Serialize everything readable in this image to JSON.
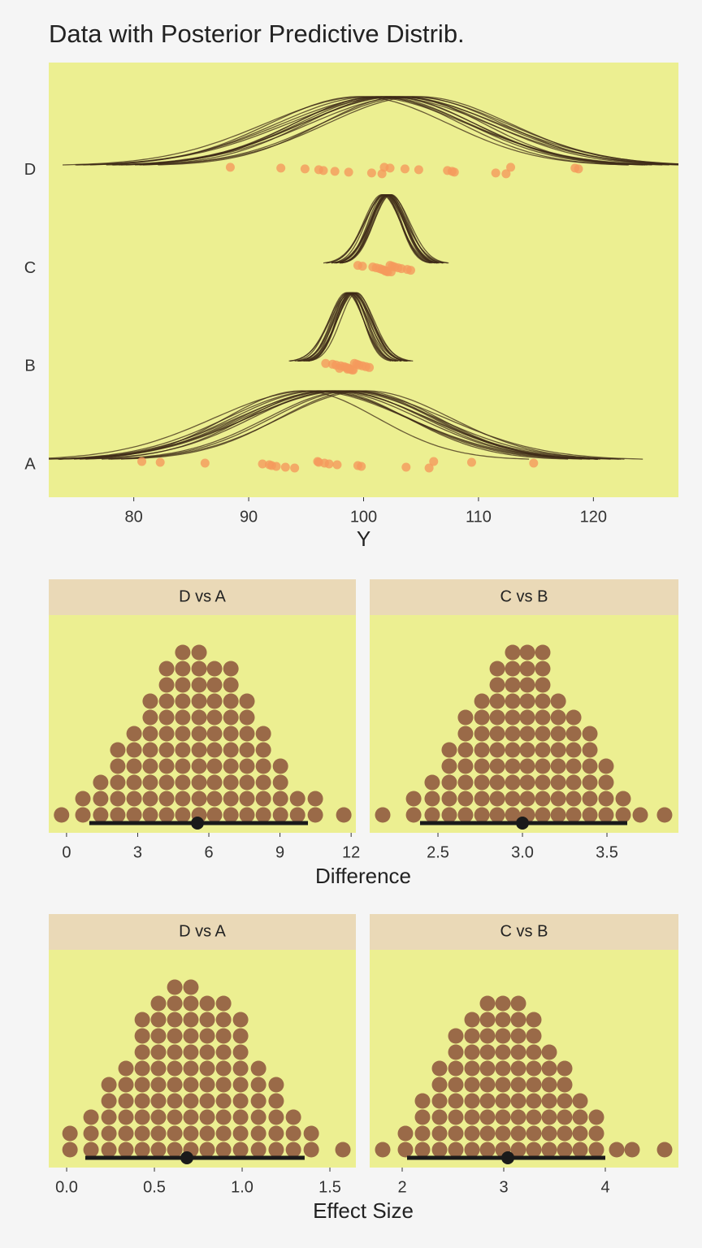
{
  "chart_data": [
    {
      "type": "ppd",
      "title": "Data with Posterior Predictive Distrib.",
      "xlabel": "Y",
      "categories": [
        "A",
        "B",
        "C",
        "D"
      ],
      "xlim": [
        72.6,
        127.4
      ],
      "xticks": [
        80,
        90,
        100,
        110,
        120
      ],
      "point_color": "#f59a5c",
      "curve_color": "#3d2a17",
      "background": "#ecef91",
      "groups": [
        {
          "points": [
            80.7,
            82.3,
            86.2,
            91.2,
            91.8,
            92.0,
            92.4,
            93.2,
            94.0,
            96.0,
            96.1,
            96.6,
            97.0,
            97.7,
            99.5,
            99.8,
            103.7,
            105.7,
            106.1,
            109.4,
            114.8
          ],
          "mu": [
            96.2,
            97.5,
            98.8,
            95.4,
            99.6,
            97.0,
            98.1,
            96.8,
            100.2,
            94.6,
            98.5,
            97.8,
            99.1,
            96.0,
            97.3
          ],
          "sigma": [
            7.6,
            8.0,
            7.2,
            8.4,
            6.9,
            7.8,
            8.2,
            7.0,
            7.4,
            6.6,
            8.6,
            7.5,
            7.1,
            7.9,
            8.3
          ]
        },
        {
          "points": [
            96.7,
            97.3,
            97.6,
            98.0,
            98.3,
            98.5,
            98.7,
            98.8,
            99.0,
            99.2,
            99.4,
            99.6,
            99.9,
            100.2,
            100.5,
            97.9,
            98.6,
            99.1
          ],
          "mu": [
            98.6,
            99.0,
            98.9,
            99.2,
            98.7,
            99.1,
            98.8,
            99.3,
            98.5,
            99.0,
            98.9,
            99.4,
            98.8,
            99.1,
            98.7
          ],
          "sigma": [
            1.4,
            1.6,
            1.3,
            1.5,
            1.7,
            1.4,
            1.2,
            1.6,
            1.5,
            1.3,
            1.8,
            1.4,
            1.5,
            1.6,
            1.3
          ]
        },
        {
          "points": [
            99.5,
            99.9,
            100.8,
            101.1,
            101.4,
            101.6,
            101.8,
            102.0,
            102.1,
            102.3,
            102.5,
            102.7,
            103.0,
            103.3,
            103.8,
            104.1,
            101.9,
            102.4
          ],
          "mu": [
            102.0,
            101.8,
            102.2,
            101.9,
            102.3,
            101.7,
            102.1,
            102.4,
            101.9,
            102.0,
            101.6,
            102.2,
            102.1,
            101.8,
            102.3
          ],
          "sigma": [
            1.5,
            1.4,
            1.6,
            1.3,
            1.7,
            1.5,
            1.4,
            1.5,
            1.8,
            1.3,
            1.6,
            1.4,
            1.5,
            1.7,
            1.4
          ]
        },
        {
          "points": [
            88.4,
            92.8,
            94.9,
            96.1,
            96.5,
            97.5,
            98.7,
            100.7,
            101.6,
            101.8,
            102.3,
            103.6,
            104.8,
            107.3,
            107.7,
            107.9,
            111.5,
            112.4,
            112.8,
            118.4,
            118.7
          ],
          "mu": [
            100.2,
            101.5,
            102.8,
            103.4,
            101.9,
            104.2,
            100.8,
            102.3,
            103.9,
            99.6,
            102.6,
            101.2,
            104.8,
            103.1,
            102.0
          ],
          "sigma": [
            8.8,
            7.6,
            8.2,
            7.1,
            9.0,
            7.9,
            8.4,
            7.4,
            8.6,
            7.8,
            9.2,
            7.3,
            8.0,
            8.5,
            7.7
          ]
        }
      ]
    },
    {
      "type": "dotplot",
      "xlabel": "Difference",
      "color": "#9a6a48",
      "strip_color": "#ead9b7",
      "background": "#ecef91",
      "panels": [
        {
          "title": "D vs A",
          "xlim": [
            -0.75,
            12.2
          ],
          "xticks": [
            0,
            3,
            6,
            9,
            12
          ],
          "bins": [
            -0.21,
            0.69,
            1.44,
            2.16,
            2.85,
            3.53,
            4.22,
            4.9,
            5.59,
            6.24,
            6.93,
            7.61,
            8.3,
            9.02,
            9.74,
            10.49,
            11.69
          ],
          "counts": [
            1,
            2,
            3,
            5,
            6,
            8,
            10,
            11,
            11,
            10,
            10,
            8,
            6,
            4,
            2,
            2,
            1
          ],
          "estimate": 5.52,
          "interval": [
            0.96,
            10.18
          ]
        },
        {
          "title": "C vs B",
          "xlim": [
            2.096,
            3.923
          ],
          "xticks": [
            2.5,
            {
              "value": 3,
              "label": "3.0"
            },
            3.5
          ],
          "bins": [
            2.173,
            2.356,
            2.466,
            2.567,
            2.663,
            2.76,
            2.851,
            2.942,
            3.029,
            3.12,
            3.212,
            3.303,
            3.399,
            3.495,
            3.596,
            3.697,
            3.841
          ],
          "counts": [
            1,
            2,
            3,
            5,
            7,
            8,
            10,
            11,
            11,
            11,
            8,
            7,
            6,
            4,
            2,
            1,
            1
          ],
          "estimate": 3.0,
          "interval": [
            2.394,
            3.62
          ]
        }
      ]
    },
    {
      "type": "dotplot",
      "xlabel": "Effect Size",
      "color": "#9a6a48",
      "strip_color": "#ead9b7",
      "background": "#ecef91",
      "panels": [
        {
          "title": "D vs A",
          "xlim": [
            -0.102,
            1.648
          ],
          "xticks": [
            {
              "value": 0,
              "label": "0.0"
            },
            0.5,
            {
              "value": 1,
              "label": "1.0"
            },
            1.5
          ],
          "bins": [
            0.019,
            0.139,
            0.241,
            0.338,
            0.431,
            0.523,
            0.616,
            0.708,
            0.801,
            0.894,
            0.991,
            1.093,
            1.194,
            1.292,
            1.394,
            1.574
          ],
          "counts": [
            2,
            3,
            5,
            6,
            9,
            10,
            11,
            11,
            10,
            10,
            9,
            6,
            5,
            3,
            2,
            1
          ],
          "estimate": 0.685,
          "interval": [
            0.106,
            1.356
          ]
        },
        {
          "title": "C vs B",
          "xlim": [
            1.68,
            4.72
          ],
          "xticks": [
            2,
            3,
            4
          ],
          "bins": [
            1.808,
            2.032,
            2.2,
            2.368,
            2.528,
            2.688,
            2.84,
            2.992,
            3.144,
            3.296,
            3.448,
            3.6,
            3.752,
            3.912,
            4.112,
            4.264,
            4.584
          ],
          "counts": [
            1,
            2,
            4,
            6,
            8,
            9,
            10,
            10,
            10,
            9,
            7,
            6,
            4,
            3,
            1,
            1,
            1
          ],
          "estimate": 3.04,
          "interval": [
            2.048,
            4.0
          ]
        }
      ]
    }
  ]
}
